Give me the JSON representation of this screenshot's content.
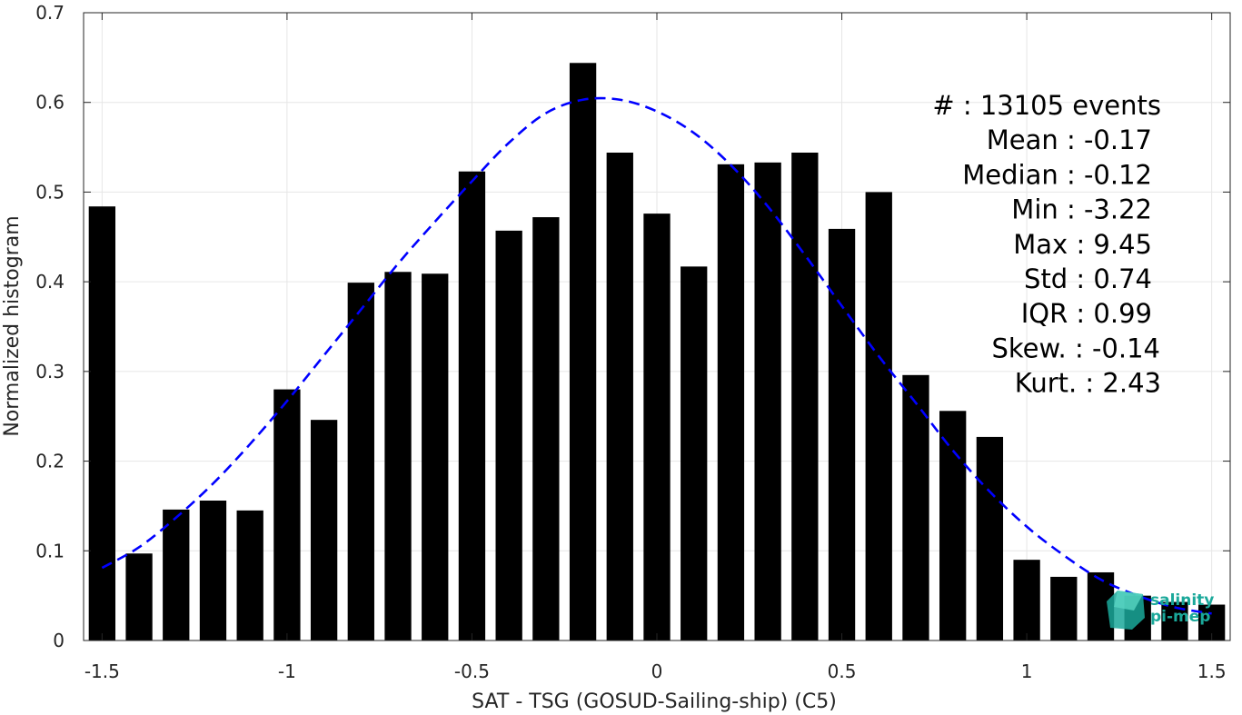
{
  "chart_data": {
    "type": "bar",
    "xlabel": "SAT - TSG (GOSUD-Sailing-ship) (C5)",
    "ylabel": "Normalized histogram",
    "xlim": [
      -1.55,
      1.55
    ],
    "ylim": [
      0,
      0.7
    ],
    "xticks": [
      -1.5,
      -1,
      -0.5,
      0,
      0.5,
      1,
      1.5
    ],
    "xtick_labels": [
      "-1.5",
      "-1",
      "-0.5",
      "0",
      "0.5",
      "1",
      "1.5"
    ],
    "yticks": [
      0,
      0.1,
      0.2,
      0.3,
      0.4,
      0.5,
      0.6,
      0.7
    ],
    "ytick_labels": [
      "0",
      "0.1",
      "0.2",
      "0.3",
      "0.4",
      "0.5",
      "0.6",
      "0.7"
    ],
    "grid": true,
    "bar_color": "#000000",
    "bars": [
      {
        "x": -1.5,
        "value": 0.484
      },
      {
        "x": -1.4,
        "value": 0.097
      },
      {
        "x": -1.3,
        "value": 0.146
      },
      {
        "x": -1.2,
        "value": 0.156
      },
      {
        "x": -1.1,
        "value": 0.145
      },
      {
        "x": -1.0,
        "value": 0.28
      },
      {
        "x": -0.9,
        "value": 0.246
      },
      {
        "x": -0.8,
        "value": 0.399
      },
      {
        "x": -0.7,
        "value": 0.411
      },
      {
        "x": -0.6,
        "value": 0.409
      },
      {
        "x": -0.5,
        "value": 0.523
      },
      {
        "x": -0.4,
        "value": 0.457
      },
      {
        "x": -0.3,
        "value": 0.472
      },
      {
        "x": -0.2,
        "value": 0.644
      },
      {
        "x": -0.1,
        "value": 0.544
      },
      {
        "x": 0.0,
        "value": 0.476
      },
      {
        "x": 0.1,
        "value": 0.417
      },
      {
        "x": 0.2,
        "value": 0.531
      },
      {
        "x": 0.3,
        "value": 0.533
      },
      {
        "x": 0.4,
        "value": 0.544
      },
      {
        "x": 0.5,
        "value": 0.459
      },
      {
        "x": 0.6,
        "value": 0.5
      },
      {
        "x": 0.7,
        "value": 0.296
      },
      {
        "x": 0.8,
        "value": 0.256
      },
      {
        "x": 0.9,
        "value": 0.227
      },
      {
        "x": 1.0,
        "value": 0.09
      },
      {
        "x": 1.1,
        "value": 0.071
      },
      {
        "x": 1.2,
        "value": 0.076
      },
      {
        "x": 1.3,
        "value": 0.05
      },
      {
        "x": 1.4,
        "value": 0.043
      },
      {
        "x": 1.5,
        "value": 0.04
      }
    ],
    "fit_curve": {
      "style": "dashed",
      "color": "#0000ff",
      "x": [
        -1.5,
        -1.4,
        -1.3,
        -1.2,
        -1.1,
        -1.0,
        -0.9,
        -0.8,
        -0.7,
        -0.6,
        -0.5,
        -0.4,
        -0.3,
        -0.2,
        -0.1,
        0.0,
        0.1,
        0.2,
        0.3,
        0.4,
        0.5,
        0.6,
        0.7,
        0.8,
        0.9,
        1.0,
        1.1,
        1.2,
        1.3,
        1.4,
        1.5
      ],
      "y": [
        0.081,
        0.104,
        0.137,
        0.175,
        0.219,
        0.267,
        0.318,
        0.369,
        0.42,
        0.467,
        0.512,
        0.555,
        0.588,
        0.603,
        0.603,
        0.59,
        0.566,
        0.53,
        0.484,
        0.43,
        0.373,
        0.317,
        0.265,
        0.212,
        0.166,
        0.127,
        0.095,
        0.068,
        0.05,
        0.037,
        0.03
      ]
    },
    "stats": [
      {
        "label": "#  : 13105 events",
        "value": ""
      },
      {
        "label": "Mean : -0.17",
        "value": ""
      },
      {
        "label": "Median : -0.12",
        "value": ""
      },
      {
        "label": "Min : -3.22",
        "value": ""
      },
      {
        "label": "Max : 9.45",
        "value": ""
      },
      {
        "label": "Std : 0.74",
        "value": ""
      },
      {
        "label": "IQR : 0.99",
        "value": ""
      },
      {
        "label": "Skew. : -0.14",
        "value": ""
      },
      {
        "label": "Kurt. : 2.43",
        "value": ""
      }
    ]
  },
  "logo": {
    "line1": "salinity",
    "line2": "pi-mep",
    "color": "#1aa89a"
  }
}
